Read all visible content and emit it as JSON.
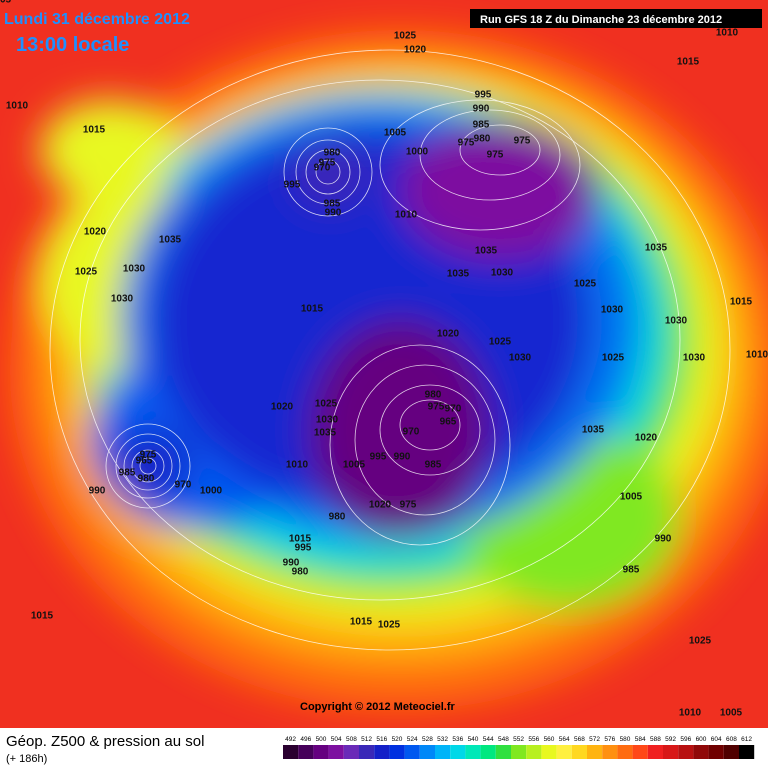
{
  "header": {
    "date": "Lundi 31 décembre 2012",
    "time": "13:00 locale",
    "run": "Run GFS 18 Z du Dimanche 23 décembre 2012"
  },
  "footer": {
    "title": "Géop. Z500 & pression au sol",
    "lead": "(+ 186h)",
    "copyright": "Copyright © 2012 Meteociel.fr"
  },
  "scale": {
    "values": [
      492,
      496,
      500,
      504,
      508,
      512,
      516,
      520,
      524,
      528,
      532,
      536,
      540,
      544,
      548,
      552,
      556,
      560,
      564,
      568,
      572,
      576,
      580,
      584,
      588,
      592,
      596,
      600,
      604,
      608,
      612
    ],
    "colors": [
      "#2a0030",
      "#46005a",
      "#650080",
      "#7d10a0",
      "#6a2ab8",
      "#3a28b8",
      "#1420c8",
      "#0030e0",
      "#0058f0",
      "#0088f8",
      "#00b4f8",
      "#00d8e8",
      "#00e8b8",
      "#00e880",
      "#30e040",
      "#80e820",
      "#b8f020",
      "#e8f820",
      "#fff040",
      "#ffd820",
      "#ffb410",
      "#ff9010",
      "#ff6c10",
      "#ff4818",
      "#f02020",
      "#d81818",
      "#b81010",
      "#900808",
      "#700000",
      "#500000",
      "#000000"
    ]
  },
  "isobar_labels": [
    "1025",
    "1020",
    "1010",
    "1015",
    "1010",
    "1015",
    "995",
    "990",
    "985",
    "1005",
    "980",
    "975",
    "975",
    "975",
    "1000",
    "980",
    "975",
    "970",
    "995",
    "985",
    "990",
    "1010",
    "1020",
    "1035",
    "1035",
    "1035",
    "1030",
    "1035",
    "1025",
    "1030",
    "1025",
    "1030",
    "1015",
    "1030",
    "1015",
    "1030",
    "1020",
    "1025",
    "1030",
    "1025",
    "1030",
    "1010",
    "1020",
    "1025",
    "980",
    "975",
    "970",
    "1030",
    "965",
    "1035",
    "970",
    "1035",
    "1020",
    "975",
    "965",
    "1010",
    "1005",
    "995",
    "990",
    "985",
    "985",
    "980",
    "970",
    "990",
    "1000",
    "1005",
    "1020",
    "975",
    "980",
    "990",
    "1015",
    "995",
    "990",
    "980",
    "985",
    "1015",
    "1015",
    "1025",
    "1025",
    "1010",
    "1005",
    "1005"
  ]
}
